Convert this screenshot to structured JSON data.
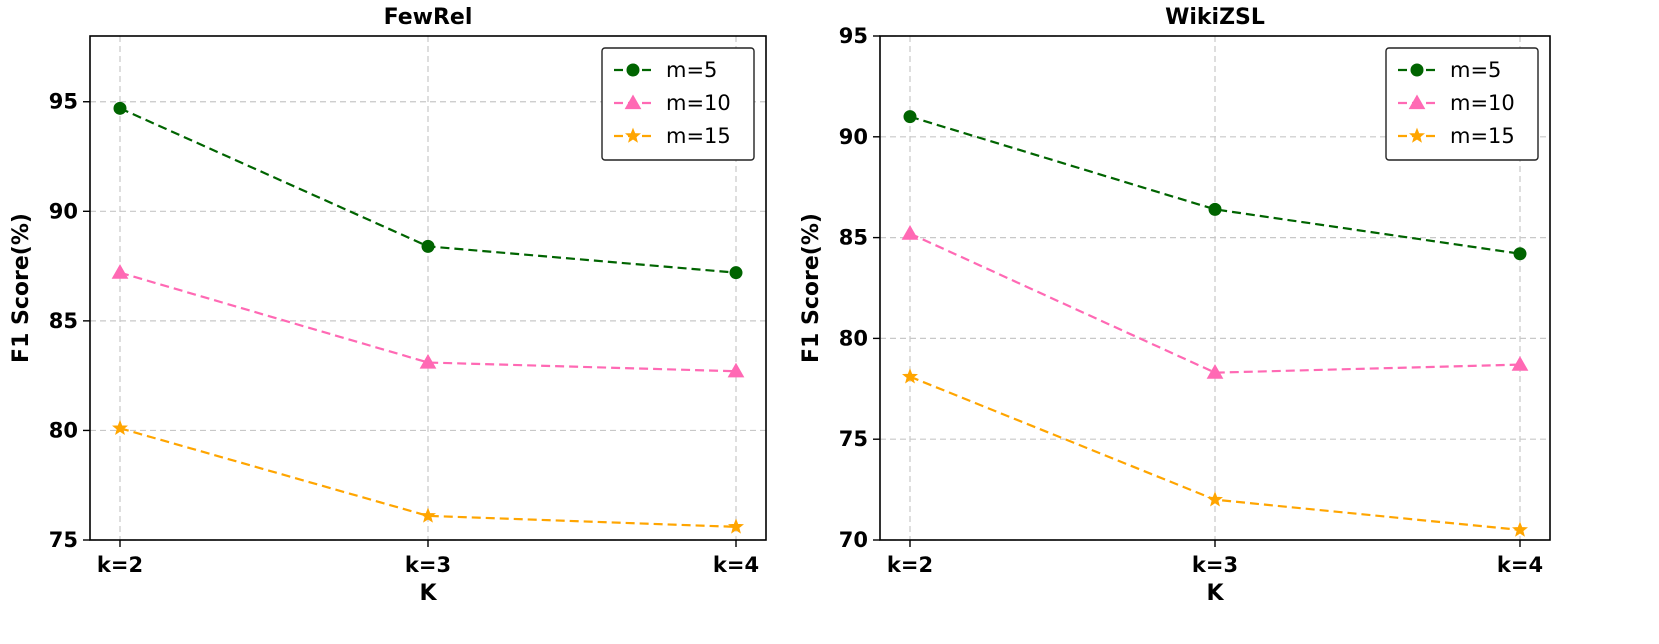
{
  "chart_data": [
    {
      "type": "line",
      "title": "FewRel",
      "xlabel": "K",
      "ylabel": "F1 Score(%)",
      "categories": [
        "k=2",
        "k=3",
        "k=4"
      ],
      "ylim": [
        75,
        98
      ],
      "yticks": [
        75,
        80,
        85,
        90,
        95
      ],
      "grid": true,
      "legend_position": "top-right",
      "series": [
        {
          "name": "m=5",
          "values": [
            94.7,
            88.4,
            87.2
          ],
          "color": "#006400",
          "marker": "circle"
        },
        {
          "name": "m=10",
          "values": [
            87.2,
            83.1,
            82.7
          ],
          "color": "#ff69b4",
          "marker": "triangle"
        },
        {
          "name": "m=15",
          "values": [
            80.1,
            76.1,
            75.6
          ],
          "color": "#ffa500",
          "marker": "star"
        }
      ]
    },
    {
      "type": "line",
      "title": "WikiZSL",
      "xlabel": "K",
      "ylabel": "F1 Score(%)",
      "categories": [
        "k=2",
        "k=3",
        "k=4"
      ],
      "ylim": [
        70,
        95
      ],
      "yticks": [
        70,
        75,
        80,
        85,
        90,
        95
      ],
      "grid": true,
      "legend_position": "top-right",
      "series": [
        {
          "name": "m=5",
          "values": [
            91.0,
            86.4,
            84.2
          ],
          "color": "#006400",
          "marker": "circle"
        },
        {
          "name": "m=10",
          "values": [
            85.2,
            78.3,
            78.7
          ],
          "color": "#ff69b4",
          "marker": "triangle"
        },
        {
          "name": "m=15",
          "values": [
            78.1,
            72.0,
            70.5
          ],
          "color": "#ffa500",
          "marker": "star"
        }
      ]
    }
  ]
}
